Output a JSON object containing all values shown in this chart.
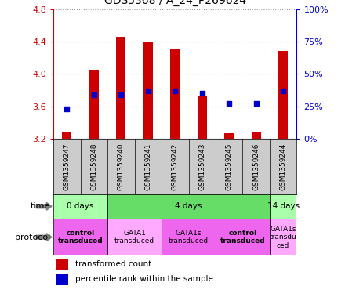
{
  "title": "GDS5368 / A_24_P269624",
  "samples": [
    "GSM1359247",
    "GSM1359248",
    "GSM1359240",
    "GSM1359241",
    "GSM1359242",
    "GSM1359243",
    "GSM1359245",
    "GSM1359246",
    "GSM1359244"
  ],
  "bar_top": [
    3.28,
    4.05,
    4.46,
    4.4,
    4.3,
    3.73,
    3.27,
    3.29,
    4.28
  ],
  "percentile": [
    23,
    34,
    34,
    37,
    37,
    35,
    27,
    27,
    37
  ],
  "ylim_left": [
    3.2,
    4.8
  ],
  "ylim_right": [
    0,
    100
  ],
  "yticks_left": [
    3.2,
    3.6,
    4.0,
    4.4,
    4.8
  ],
  "yticks_right": [
    0,
    25,
    50,
    75,
    100
  ],
  "ytick_labels_right": [
    "0%",
    "25%",
    "50%",
    "75%",
    "100%"
  ],
  "bar_color": "#cc0000",
  "dot_color": "#0000cc",
  "bar_bottom": 3.2,
  "bar_width": 0.35,
  "time_groups": [
    {
      "label": "0 days",
      "start": 0,
      "end": 2,
      "color": "#aaffaa"
    },
    {
      "label": "4 days",
      "start": 2,
      "end": 8,
      "color": "#66dd66"
    },
    {
      "label": "14 days",
      "start": 8,
      "end": 9,
      "color": "#aaffaa"
    }
  ],
  "protocol_groups": [
    {
      "label": "control\ntransduced",
      "start": 0,
      "end": 2,
      "color": "#ee66ee",
      "bold": true
    },
    {
      "label": "GATA1\ntransduced",
      "start": 2,
      "end": 4,
      "color": "#ffaaff",
      "bold": false
    },
    {
      "label": "GATA1s\ntransduced",
      "start": 4,
      "end": 6,
      "color": "#ee66ee",
      "bold": false
    },
    {
      "label": "control\ntransduced",
      "start": 6,
      "end": 8,
      "color": "#ee66ee",
      "bold": true
    },
    {
      "label": "GATA1s\ntransdu\nced",
      "start": 8,
      "end": 9,
      "color": "#ffaaff",
      "bold": false
    }
  ],
  "left_color": "#cc0000",
  "right_color": "#0000cc",
  "sample_bg_color": "#cccccc",
  "grid_color": "black",
  "grid_alpha": 0.4
}
